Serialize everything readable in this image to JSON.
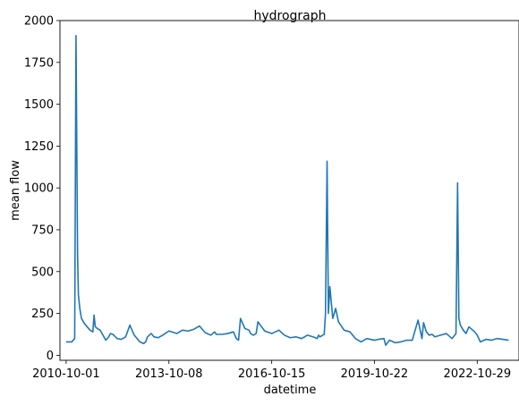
{
  "chart_data": {
    "type": "line",
    "title": "hydrograph",
    "xlabel": "datetime",
    "ylabel": "mean flow",
    "ylim": [
      -30,
      2000
    ],
    "xlim": [
      "2010-07-27",
      "2024-01-20"
    ],
    "x_ticks": [
      "2010-10-01",
      "2013-10-08",
      "2016-10-15",
      "2019-10-22",
      "2022-10-29"
    ],
    "y_ticks": [
      0,
      250,
      500,
      750,
      1000,
      1250,
      1500,
      1750,
      2000
    ],
    "grid": false,
    "series": [
      {
        "color": "#1f77b4",
        "x": [
          "2010-10-01",
          "2010-12-01",
          "2011-01-01",
          "2011-01-15",
          "2011-02-01",
          "2011-02-10",
          "2011-02-25",
          "2011-03-15",
          "2011-04-15",
          "2011-05-15",
          "2011-06-15",
          "2011-07-15",
          "2011-07-28",
          "2011-08-10",
          "2011-09-01",
          "2011-10-01",
          "2011-11-01",
          "2011-12-01",
          "2012-01-01",
          "2012-01-20",
          "2012-02-15",
          "2012-04-01",
          "2012-05-15",
          "2012-07-01",
          "2012-08-15",
          "2012-10-01",
          "2012-12-01",
          "2013-01-10",
          "2013-02-01",
          "2013-02-20",
          "2013-04-01",
          "2013-05-01",
          "2013-06-15",
          "2013-08-01",
          "2013-10-08",
          "2014-01-01",
          "2014-03-01",
          "2014-05-01",
          "2014-07-01",
          "2014-09-01",
          "2014-11-01",
          "2015-01-01",
          "2015-02-10",
          "2015-03-01",
          "2015-05-01",
          "2015-07-01",
          "2015-09-01",
          "2015-10-01",
          "2015-10-25",
          "2015-11-15",
          "2016-01-01",
          "2016-02-15",
          "2016-03-01",
          "2016-04-01",
          "2016-05-01",
          "2016-05-20",
          "2016-06-15",
          "2016-08-01",
          "2016-10-15",
          "2017-01-01",
          "2017-03-01",
          "2017-05-01",
          "2017-07-01",
          "2017-09-01",
          "2017-11-01",
          "2018-01-01",
          "2018-02-15",
          "2018-03-01",
          "2018-03-15",
          "2018-04-01",
          "2018-04-15",
          "2018-05-01",
          "2018-05-15",
          "2018-06-01",
          "2018-06-15",
          "2018-07-01",
          "2018-08-01",
          "2018-09-01",
          "2018-10-01",
          "2018-12-01",
          "2019-02-01",
          "2019-04-01",
          "2019-06-01",
          "2019-08-01",
          "2019-10-22",
          "2019-12-01",
          "2020-02-01",
          "2020-02-20",
          "2020-04-01",
          "2020-06-01",
          "2020-08-01",
          "2020-10-01",
          "2020-12-01",
          "2021-02-01",
          "2021-03-15",
          "2021-04-01",
          "2021-05-01",
          "2021-06-01",
          "2021-07-01",
          "2021-08-01",
          "2021-10-01",
          "2021-12-01",
          "2022-02-01",
          "2022-03-01",
          "2022-03-15",
          "2022-04-01",
          "2022-04-15",
          "2022-05-01",
          "2022-06-01",
          "2022-07-01",
          "2022-08-01",
          "2022-10-01",
          "2022-10-29",
          "2022-12-01",
          "2023-02-01",
          "2023-04-01",
          "2023-06-01",
          "2023-08-01",
          "2023-10-01"
        ],
        "y": [
          80,
          80,
          100,
          1910,
          600,
          360,
          280,
          220,
          190,
          170,
          150,
          140,
          240,
          170,
          160,
          150,
          120,
          90,
          110,
          130,
          125,
          100,
          95,
          110,
          180,
          120,
          80,
          70,
          80,
          110,
          130,
          110,
          105,
          120,
          145,
          130,
          150,
          145,
          155,
          175,
          135,
          120,
          140,
          125,
          125,
          130,
          140,
          100,
          90,
          220,
          160,
          150,
          130,
          120,
          130,
          200,
          180,
          145,
          130,
          150,
          120,
          105,
          110,
          100,
          120,
          110,
          100,
          120,
          110,
          115,
          120,
          125,
          250,
          1160,
          250,
          410,
          220,
          280,
          200,
          150,
          140,
          100,
          80,
          100,
          90,
          95,
          100,
          60,
          90,
          75,
          80,
          90,
          90,
          210,
          100,
          195,
          140,
          120,
          125,
          110,
          120,
          130,
          100,
          120,
          130,
          1030,
          220,
          180,
          150,
          130,
          170,
          140,
          120,
          80,
          95,
          90,
          100,
          95,
          90
        ]
      }
    ]
  }
}
